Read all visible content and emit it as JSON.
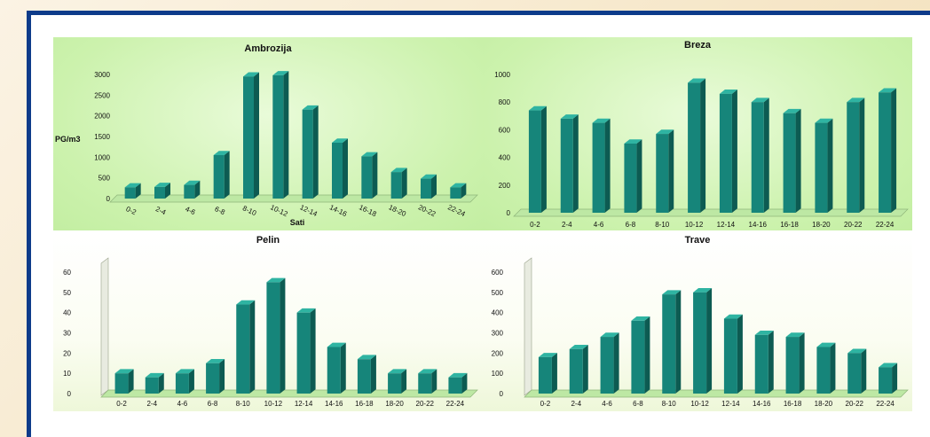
{
  "colors": {
    "bar_front": "#16857a",
    "bar_side": "#0d5b52",
    "bar_top": "#2fb4a2",
    "floor": "#bde8a4",
    "axis_text": "#111111"
  },
  "chart_data": [
    {
      "type": "bar",
      "title": "Ambrozija",
      "xlabel": "Sati",
      "ylabel": "PG/m3",
      "categories": [
        "0-2",
        "2-4",
        "4-6",
        "6-8",
        "8-10",
        "10-12",
        "12-14",
        "14-16",
        "16-18",
        "18-20",
        "20-22",
        "22-24"
      ],
      "values": [
        270,
        280,
        330,
        1050,
        2950,
        2980,
        2150,
        1350,
        1020,
        640,
        480,
        270
      ],
      "ylim": [
        0,
        3000
      ],
      "yticks": [
        0,
        500,
        1000,
        1500,
        2000,
        2500,
        3000
      ],
      "xtick_rotation": "angled"
    },
    {
      "type": "bar",
      "title": "Breza",
      "xlabel": "",
      "ylabel": "",
      "categories": [
        "0-2",
        "2-4",
        "4-6",
        "6-8",
        "8-10",
        "10-12",
        "12-14",
        "14-16",
        "16-18",
        "18-20",
        "20-22",
        "22-24"
      ],
      "values": [
        740,
        680,
        650,
        500,
        570,
        940,
        860,
        800,
        720,
        650,
        800,
        870
      ],
      "ylim": [
        0,
        1000
      ],
      "yticks": [
        0,
        200,
        400,
        600,
        800,
        1000
      ]
    },
    {
      "type": "bar",
      "title": "Pelin",
      "xlabel": "",
      "ylabel": "",
      "categories": [
        "0-2",
        "2-4",
        "4-6",
        "6-8",
        "8-10",
        "10-12",
        "12-14",
        "14-16",
        "16-18",
        "18-20",
        "20-22",
        "22-24"
      ],
      "values": [
        10,
        8,
        10,
        15,
        44,
        55,
        40,
        23,
        17,
        10,
        10,
        8
      ],
      "ylim": [
        0,
        60
      ],
      "yticks": [
        0,
        10,
        20,
        30,
        40,
        50,
        60
      ]
    },
    {
      "type": "bar",
      "title": "Trave",
      "xlabel": "",
      "ylabel": "",
      "categories": [
        "0-2",
        "2-4",
        "4-6",
        "6-8",
        "8-10",
        "10-12",
        "12-14",
        "14-16",
        "16-18",
        "18-20",
        "20-22",
        "22-24"
      ],
      "values": [
        180,
        220,
        280,
        360,
        490,
        500,
        370,
        290,
        280,
        230,
        200,
        130
      ],
      "ylim": [
        0,
        600
      ],
      "yticks": [
        0,
        100,
        200,
        300,
        400,
        500,
        600
      ]
    }
  ]
}
